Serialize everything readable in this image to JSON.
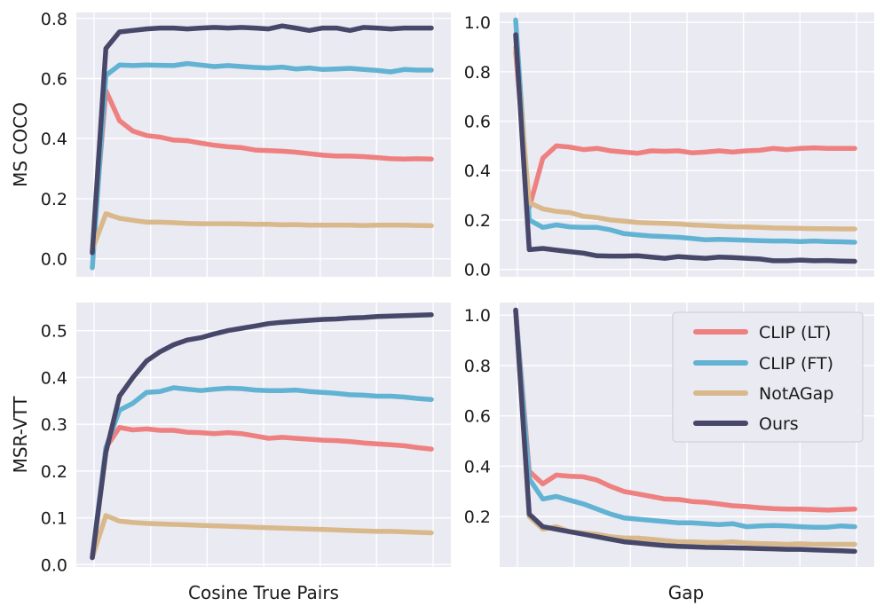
{
  "chart_data": [
    {
      "type": "line",
      "panel": "top-left",
      "ylabel": "MS COCO",
      "xlabel": "",
      "ylim": [
        -0.06,
        0.82
      ],
      "yticks": [
        0.0,
        0.2,
        0.4,
        0.6,
        0.8
      ],
      "ytick_labels": [
        "0.0",
        "0.2",
        "0.4",
        "0.6",
        "0.8"
      ],
      "x": [
        0,
        0.04,
        0.08,
        0.12,
        0.16,
        0.2,
        0.24,
        0.28,
        0.32,
        0.36,
        0.4,
        0.44,
        0.48,
        0.52,
        0.56,
        0.6,
        0.64,
        0.68,
        0.72,
        0.76,
        0.8,
        0.84,
        0.88,
        0.92,
        0.96,
        1.0
      ],
      "series": [
        {
          "name": "CLIP (LT)",
          "values": [
            0.02,
            0.56,
            0.46,
            0.425,
            0.41,
            0.405,
            0.395,
            0.393,
            0.385,
            0.378,
            0.373,
            0.37,
            0.362,
            0.36,
            0.358,
            0.355,
            0.35,
            0.345,
            0.342,
            0.342,
            0.34,
            0.337,
            0.333,
            0.332,
            0.333,
            0.332
          ]
        },
        {
          "name": "CLIP (FT)",
          "values": [
            -0.03,
            0.61,
            0.645,
            0.643,
            0.645,
            0.644,
            0.643,
            0.65,
            0.645,
            0.64,
            0.643,
            0.64,
            0.637,
            0.635,
            0.638,
            0.632,
            0.635,
            0.63,
            0.632,
            0.634,
            0.63,
            0.627,
            0.622,
            0.63,
            0.628,
            0.628
          ]
        },
        {
          "name": "NotAGap",
          "values": [
            0.03,
            0.15,
            0.135,
            0.128,
            0.122,
            0.122,
            0.12,
            0.118,
            0.117,
            0.117,
            0.117,
            0.116,
            0.115,
            0.115,
            0.113,
            0.114,
            0.112,
            0.112,
            0.112,
            0.112,
            0.111,
            0.112,
            0.112,
            0.112,
            0.111,
            0.11
          ]
        },
        {
          "name": "Ours",
          "values": [
            0.02,
            0.7,
            0.755,
            0.76,
            0.765,
            0.768,
            0.768,
            0.765,
            0.768,
            0.77,
            0.768,
            0.77,
            0.768,
            0.765,
            0.775,
            0.768,
            0.76,
            0.768,
            0.768,
            0.76,
            0.77,
            0.768,
            0.765,
            0.768,
            0.768,
            0.768
          ]
        }
      ]
    },
    {
      "type": "line",
      "panel": "top-right",
      "ylabel": "",
      "xlabel": "",
      "ylim": [
        -0.03,
        1.04
      ],
      "yticks": [
        0.0,
        0.2,
        0.4,
        0.6,
        0.8,
        1.0
      ],
      "ytick_labels": [
        "0.0",
        "0.2",
        "0.4",
        "0.6",
        "0.8",
        "1.0"
      ],
      "x": [
        0,
        0.04,
        0.08,
        0.12,
        0.16,
        0.2,
        0.24,
        0.28,
        0.32,
        0.36,
        0.4,
        0.44,
        0.48,
        0.52,
        0.56,
        0.6,
        0.64,
        0.68,
        0.72,
        0.76,
        0.8,
        0.84,
        0.88,
        0.92,
        0.96,
        1.0
      ],
      "series": [
        {
          "name": "CLIP (LT)",
          "values": [
            0.88,
            0.25,
            0.45,
            0.5,
            0.495,
            0.485,
            0.49,
            0.48,
            0.475,
            0.47,
            0.48,
            0.478,
            0.48,
            0.472,
            0.475,
            0.48,
            0.475,
            0.48,
            0.482,
            0.49,
            0.485,
            0.49,
            0.492,
            0.49,
            0.49,
            0.49
          ]
        },
        {
          "name": "CLIP (FT)",
          "values": [
            1.01,
            0.2,
            0.17,
            0.18,
            0.172,
            0.17,
            0.17,
            0.16,
            0.145,
            0.14,
            0.135,
            0.133,
            0.13,
            0.125,
            0.12,
            0.122,
            0.12,
            0.118,
            0.116,
            0.115,
            0.115,
            0.113,
            0.115,
            0.113,
            0.112,
            0.11
          ]
        },
        {
          "name": "NotAGap",
          "values": [
            0.9,
            0.27,
            0.245,
            0.235,
            0.23,
            0.215,
            0.21,
            0.2,
            0.195,
            0.19,
            0.188,
            0.186,
            0.184,
            0.18,
            0.178,
            0.175,
            0.173,
            0.172,
            0.17,
            0.168,
            0.167,
            0.166,
            0.165,
            0.165,
            0.164,
            0.164
          ]
        },
        {
          "name": "Ours",
          "values": [
            0.95,
            0.08,
            0.085,
            0.078,
            0.072,
            0.066,
            0.055,
            0.054,
            0.054,
            0.055,
            0.05,
            0.045,
            0.052,
            0.048,
            0.045,
            0.05,
            0.048,
            0.045,
            0.042,
            0.035,
            0.035,
            0.038,
            0.035,
            0.036,
            0.034,
            0.033
          ]
        }
      ]
    },
    {
      "type": "line",
      "panel": "bottom-left",
      "ylabel": "MSR-VTT",
      "xlabel": "Cosine True Pairs",
      "ylim": [
        -0.005,
        0.56
      ],
      "yticks": [
        0.0,
        0.1,
        0.2,
        0.3,
        0.4,
        0.5
      ],
      "ytick_labels": [
        "0.0",
        "0.1",
        "0.2",
        "0.3",
        "0.4",
        "0.5"
      ],
      "x": [
        0,
        0.04,
        0.08,
        0.12,
        0.16,
        0.2,
        0.24,
        0.28,
        0.32,
        0.36,
        0.4,
        0.44,
        0.48,
        0.52,
        0.56,
        0.6,
        0.64,
        0.68,
        0.72,
        0.76,
        0.8,
        0.84,
        0.88,
        0.92,
        0.96,
        1.0
      ],
      "series": [
        {
          "name": "CLIP (LT)",
          "values": [
            0.015,
            0.25,
            0.293,
            0.288,
            0.29,
            0.287,
            0.287,
            0.283,
            0.282,
            0.28,
            0.282,
            0.28,
            0.275,
            0.27,
            0.272,
            0.27,
            0.268,
            0.266,
            0.265,
            0.263,
            0.26,
            0.258,
            0.256,
            0.254,
            0.25,
            0.247
          ]
        },
        {
          "name": "CLIP (FT)",
          "values": [
            0.015,
            0.25,
            0.33,
            0.345,
            0.368,
            0.37,
            0.378,
            0.375,
            0.372,
            0.375,
            0.377,
            0.376,
            0.373,
            0.372,
            0.372,
            0.373,
            0.37,
            0.368,
            0.366,
            0.363,
            0.362,
            0.36,
            0.36,
            0.358,
            0.355,
            0.353
          ]
        },
        {
          "name": "NotAGap",
          "values": [
            0.015,
            0.105,
            0.093,
            0.09,
            0.088,
            0.087,
            0.086,
            0.085,
            0.084,
            0.083,
            0.082,
            0.081,
            0.08,
            0.079,
            0.078,
            0.077,
            0.076,
            0.075,
            0.074,
            0.073,
            0.072,
            0.071,
            0.071,
            0.07,
            0.069,
            0.068
          ]
        },
        {
          "name": "Ours",
          "values": [
            0.015,
            0.24,
            0.36,
            0.4,
            0.435,
            0.455,
            0.47,
            0.48,
            0.485,
            0.493,
            0.5,
            0.505,
            0.51,
            0.515,
            0.518,
            0.52,
            0.522,
            0.524,
            0.525,
            0.527,
            0.528,
            0.53,
            0.531,
            0.532,
            0.533,
            0.534
          ]
        }
      ]
    },
    {
      "type": "line",
      "panel": "bottom-right",
      "ylabel": "",
      "xlabel": "Gap",
      "ylim": [
        0.0,
        1.05
      ],
      "yticks": [
        0.2,
        0.4,
        0.6,
        0.8,
        1.0
      ],
      "ytick_labels": [
        "0.2",
        "0.4",
        "0.6",
        "0.8",
        "1.0"
      ],
      "x": [
        0,
        0.04,
        0.08,
        0.12,
        0.16,
        0.2,
        0.24,
        0.28,
        0.32,
        0.36,
        0.4,
        0.44,
        0.48,
        0.52,
        0.56,
        0.6,
        0.64,
        0.68,
        0.72,
        0.76,
        0.8,
        0.84,
        0.88,
        0.92,
        0.96,
        1.0
      ],
      "series": [
        {
          "name": "CLIP (LT)",
          "values": [
            1.02,
            0.38,
            0.33,
            0.365,
            0.36,
            0.358,
            0.345,
            0.32,
            0.3,
            0.29,
            0.28,
            0.27,
            0.268,
            0.26,
            0.257,
            0.25,
            0.243,
            0.24,
            0.235,
            0.232,
            0.23,
            0.23,
            0.228,
            0.226,
            0.228,
            0.23
          ]
        },
        {
          "name": "CLIP (FT)",
          "values": [
            1.02,
            0.35,
            0.27,
            0.28,
            0.265,
            0.25,
            0.23,
            0.21,
            0.195,
            0.19,
            0.185,
            0.18,
            0.175,
            0.175,
            0.172,
            0.168,
            0.172,
            0.16,
            0.163,
            0.165,
            0.163,
            0.16,
            0.158,
            0.158,
            0.163,
            0.16
          ]
        },
        {
          "name": "NotAGap",
          "values": [
            1.02,
            0.2,
            0.15,
            0.16,
            0.14,
            0.135,
            0.13,
            0.12,
            0.115,
            0.115,
            0.11,
            0.105,
            0.1,
            0.1,
            0.098,
            0.097,
            0.1,
            0.095,
            0.093,
            0.092,
            0.09,
            0.092,
            0.09,
            0.09,
            0.09,
            0.09
          ]
        },
        {
          "name": "Ours",
          "values": [
            1.02,
            0.21,
            0.16,
            0.15,
            0.14,
            0.13,
            0.12,
            0.11,
            0.1,
            0.095,
            0.09,
            0.085,
            0.082,
            0.08,
            0.078,
            0.077,
            0.076,
            0.075,
            0.073,
            0.072,
            0.07,
            0.07,
            0.068,
            0.066,
            0.064,
            0.062
          ]
        }
      ]
    }
  ],
  "legend": {
    "placement": "top-right",
    "items": [
      {
        "label": "CLIP (LT)",
        "color": "#ee8080"
      },
      {
        "label": "CLIP (FT)",
        "color": "#62b3d3"
      },
      {
        "label": "NotAGap",
        "color": "#d9b98c"
      },
      {
        "label": "Ours",
        "color": "#47476a"
      }
    ]
  },
  "colors": {
    "background": "#eaeaf2",
    "grid": "#ffffff"
  }
}
